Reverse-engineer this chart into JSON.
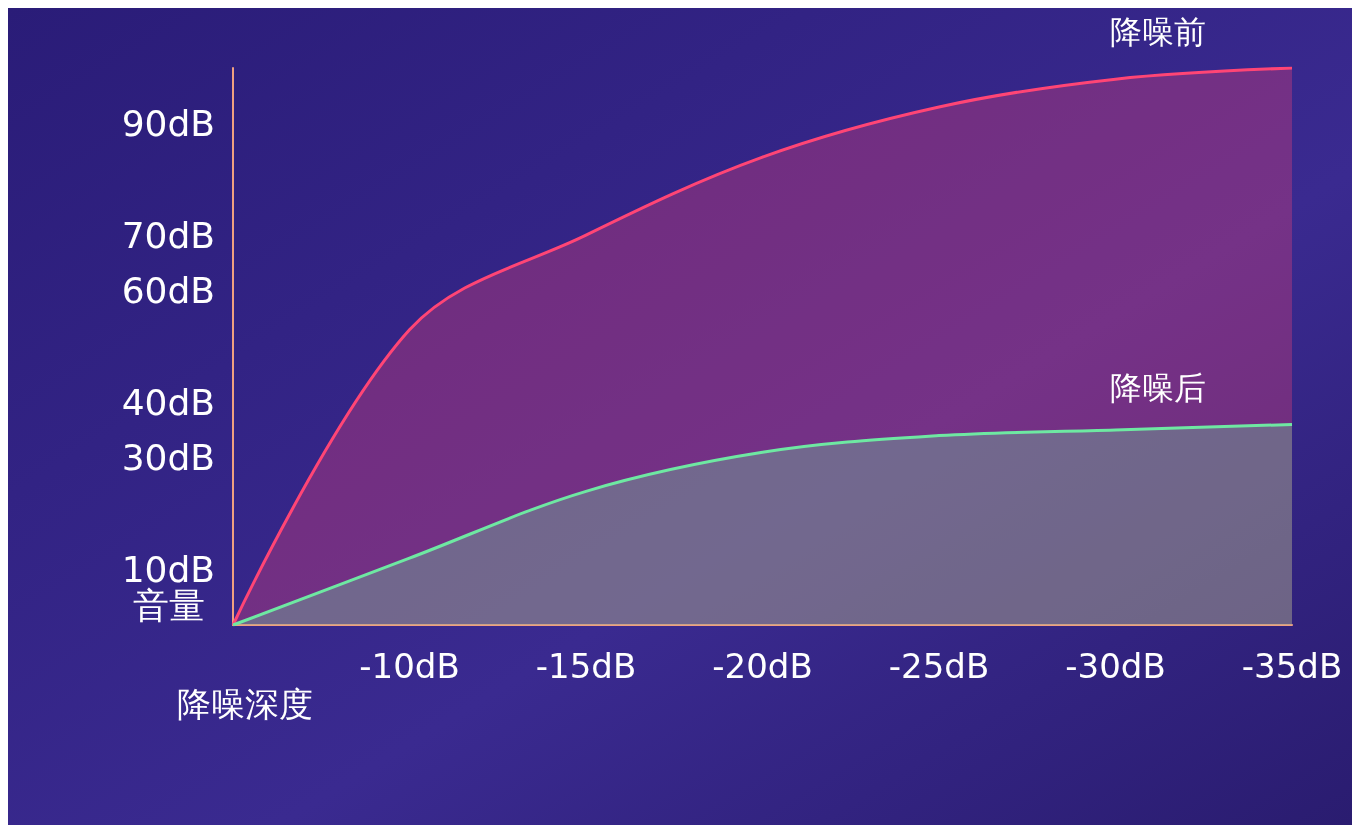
{
  "chart_data": {
    "type": "area",
    "xlabel": "降噪深度",
    "ylabel": "音量",
    "categories": [
      null,
      "-10dB",
      "-15dB",
      "-20dB",
      "-25dB",
      "-30dB",
      "-35dB"
    ],
    "series": [
      {
        "name": "降噪前",
        "color": "#ff4575",
        "values": [
          0,
          53,
          70,
          84,
          93,
          98,
          100
        ]
      },
      {
        "name": "降噪后",
        "color": "#6ee8a2",
        "values": [
          0,
          12,
          24,
          31,
          34,
          35,
          36
        ]
      }
    ],
    "ylim": [
      0,
      100
    ],
    "yticks": [
      {
        "value": 10,
        "label": "10dB"
      },
      {
        "value": 30,
        "label": "30dB"
      },
      {
        "value": 40,
        "label": "40dB"
      },
      {
        "value": 60,
        "label": "60dB"
      },
      {
        "value": 70,
        "label": "70dB"
      },
      {
        "value": 90,
        "label": "90dB"
      }
    ],
    "grid": false,
    "marker": "none",
    "line_style": "solid",
    "legend": false
  }
}
